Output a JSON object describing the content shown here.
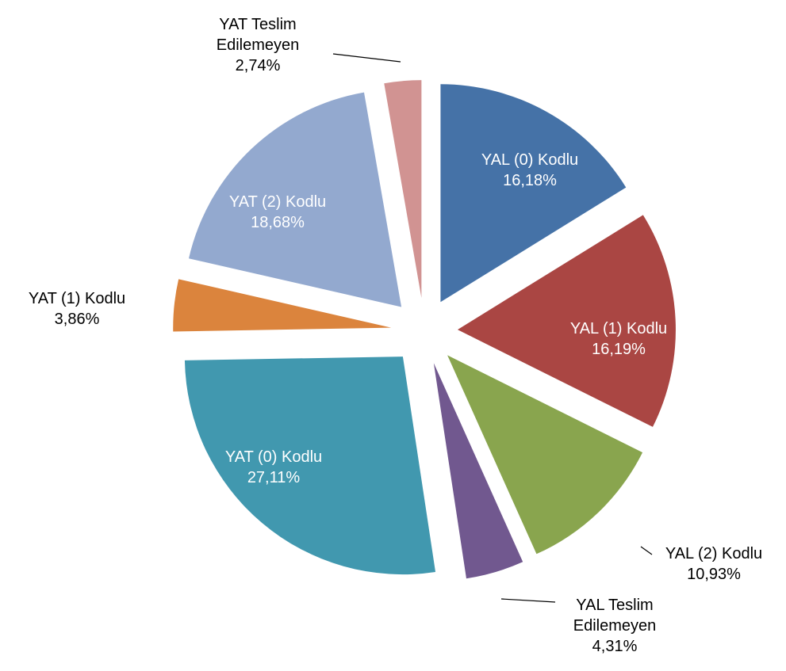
{
  "chart_data": {
    "type": "pie",
    "categories": [
      "YAL (0) Kodlu",
      "YAL (1) Kodlu",
      "YAL (2) Kodlu",
      "YAL Teslim Edilemeyen",
      "YAT (0) Kodlu",
      "YAT (1) Kodlu",
      "YAT (2) Kodlu",
      "YAT Teslim Edilemeyen"
    ],
    "values": [
      16.18,
      16.19,
      10.93,
      4.31,
      27.11,
      3.86,
      18.68,
      2.74
    ],
    "value_labels": [
      "16,18%",
      "16,19%",
      "10,93%",
      "4,31%",
      "27,11%",
      "3,86%",
      "18,68%",
      "2,74%"
    ],
    "colors": [
      "#4572a7",
      "#aa4643",
      "#89a54e",
      "#71588f",
      "#4198af",
      "#db843d",
      "#93a9cf",
      "#d19392"
    ]
  }
}
